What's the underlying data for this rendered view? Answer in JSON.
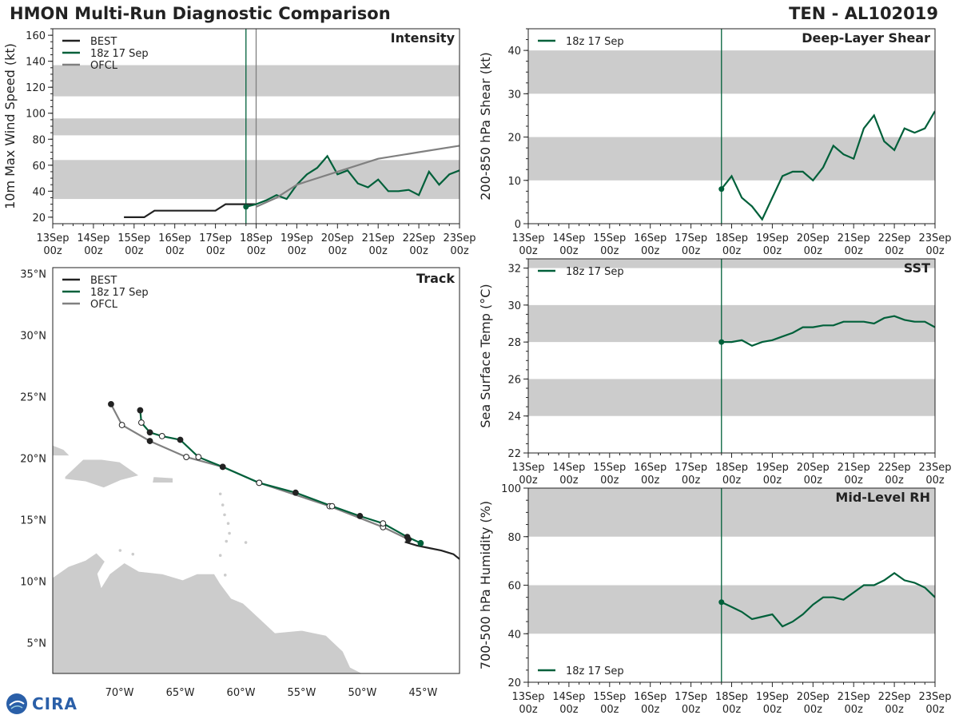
{
  "page": {
    "title": "HMON Multi-Run Diagnostic Comparison",
    "storm_id": "TEN - AL102019",
    "logo_text": "CIRA",
    "colors": {
      "best": "#222222",
      "run": "#00603a",
      "ofcl": "#808080",
      "band": "#cccccc",
      "land": "#cccccc"
    }
  },
  "legend": {
    "best": "BEST",
    "run": "18z 17 Sep",
    "ofcl": "OFCL"
  },
  "chart_data": [
    {
      "id": "intensity",
      "type": "line",
      "title": "Intensity",
      "ylabel": "10m Max Wind Speed (kt)",
      "xlabel": "",
      "xlim": [
        0,
        10
      ],
      "ylim": [
        15,
        165
      ],
      "yticks": [
        20,
        40,
        60,
        80,
        100,
        120,
        140,
        160
      ],
      "xtick_labels": [
        "13Sep\n00z",
        "14Sep\n00z",
        "15Sep\n00z",
        "16Sep\n00z",
        "17Sep\n00z",
        "18Sep\n00z",
        "19Sep\n00z",
        "20Sep\n00z",
        "21Sep\n00z",
        "22Sep\n00z",
        "23Sep\n00z"
      ],
      "bands": [
        [
          34,
          64
        ],
        [
          83,
          96
        ],
        [
          113,
          137
        ]
      ],
      "vlines": [
        {
          "x": 4.75,
          "color": "run"
        },
        {
          "x": 5.0,
          "color": "ofcl"
        }
      ],
      "series": [
        {
          "name": "BEST",
          "color": "best",
          "x": [
            1.75,
            2.0,
            2.25,
            2.5,
            2.75,
            3.0,
            3.25,
            3.5,
            3.75,
            4.0,
            4.25,
            4.5,
            4.75,
            5.0
          ],
          "y": [
            20,
            20,
            20,
            25,
            25,
            25,
            25,
            25,
            25,
            25,
            30,
            30,
            30,
            30
          ]
        },
        {
          "name": "18z 17 Sep",
          "color": "run",
          "x": [
            4.75,
            5.0,
            5.25,
            5.5,
            5.75,
            6.0,
            6.25,
            6.5,
            6.75,
            7.0,
            7.25,
            7.5,
            7.75,
            8.0,
            8.25,
            8.5,
            8.75,
            9.0,
            9.25,
            9.5,
            9.75,
            10.0
          ],
          "y": [
            28,
            30,
            33,
            37,
            34,
            45,
            53,
            58,
            67,
            53,
            56,
            46,
            43,
            49,
            40,
            40,
            41,
            37,
            55,
            45,
            53,
            56
          ],
          "start_marker": true
        },
        {
          "name": "OFCL",
          "color": "ofcl",
          "x": [
            5.0,
            5.5,
            6.0,
            7.0,
            8.0,
            9.0,
            10.0
          ],
          "y": [
            28,
            35,
            45,
            55,
            65,
            70,
            75
          ]
        }
      ]
    },
    {
      "id": "shear",
      "type": "line",
      "title": "Deep-Layer Shear",
      "ylabel": "200-850 hPa Shear (kt)",
      "xlabel": "",
      "xlim": [
        0,
        10
      ],
      "ylim": [
        0,
        45
      ],
      "yticks": [
        0,
        10,
        20,
        30,
        40
      ],
      "xtick_labels": [
        "13Sep\n00z",
        "14Sep\n00z",
        "15Sep\n00z",
        "16Sep\n00z",
        "17Sep\n00z",
        "18Sep\n00z",
        "19Sep\n00z",
        "20Sep\n00z",
        "21Sep\n00z",
        "22Sep\n00z",
        "23Sep\n00z"
      ],
      "bands": [
        [
          10,
          20
        ],
        [
          30,
          40
        ]
      ],
      "vlines": [
        {
          "x": 4.75,
          "color": "run"
        }
      ],
      "series": [
        {
          "name": "18z 17 Sep",
          "color": "run",
          "x": [
            4.75,
            5.0,
            5.25,
            5.5,
            5.75,
            6.0,
            6.25,
            6.5,
            6.75,
            7.0,
            7.25,
            7.5,
            7.75,
            8.0,
            8.25,
            8.5,
            8.75,
            9.0,
            9.25,
            9.5,
            9.75,
            10.0
          ],
          "y": [
            8,
            11,
            6,
            4,
            1,
            6,
            11,
            12,
            12,
            10,
            13,
            18,
            16,
            15,
            22,
            25,
            19,
            17,
            22,
            21,
            22,
            26
          ],
          "start_marker": true
        }
      ]
    },
    {
      "id": "track",
      "type": "scatter",
      "title": "Track",
      "xlim": [
        -75.5,
        -42
      ],
      "ylim": [
        2.5,
        35.5
      ],
      "xtick_values": [
        -70,
        -65,
        -60,
        -55,
        -50,
        -45
      ],
      "xtick_labels": [
        "70°W",
        "65°W",
        "60°W",
        "55°W",
        "50°W",
        "45°W"
      ],
      "ytick_values": [
        5,
        10,
        15,
        20,
        25,
        30,
        35
      ],
      "ytick_labels": [
        "5°N",
        "10°N",
        "15°N",
        "20°N",
        "25°N",
        "30°N",
        "35°N"
      ],
      "series": [
        {
          "name": "BEST",
          "color": "best",
          "lon": [
            -42.0,
            -42.5,
            -43.5,
            -44.5,
            -45.5,
            -46.5
          ],
          "lat": [
            11.8,
            12.2,
            12.5,
            12.7,
            12.9,
            13.2
          ]
        },
        {
          "name": "OFCL",
          "color": "ofcl",
          "lon": [
            -46.2,
            -48.3,
            -52.7,
            -58.5,
            -61.5,
            -64.5,
            -67.5,
            -69.8,
            -70.7
          ],
          "lat": [
            13.4,
            14.4,
            16.1,
            18.0,
            19.3,
            20.1,
            21.4,
            22.7,
            24.4
          ],
          "filled": [
            true,
            false,
            false,
            false,
            true,
            false,
            true,
            false,
            true
          ]
        },
        {
          "name": "18z 17 Sep",
          "color": "run",
          "lon": [
            -45.2,
            -46.3,
            -48.3,
            -50.2,
            -52.5,
            -55.5,
            -58.5,
            -61.5,
            -63.5,
            -65.0,
            -66.5,
            -67.5,
            -68.2,
            -68.3
          ],
          "lat": [
            13.1,
            13.6,
            14.7,
            15.3,
            16.1,
            17.2,
            18.0,
            19.3,
            20.1,
            21.5,
            21.8,
            22.1,
            22.9,
            23.9
          ],
          "filled": [
            true,
            true,
            false,
            true,
            false,
            true,
            false,
            true,
            false,
            true,
            false,
            true,
            false,
            true
          ]
        }
      ]
    },
    {
      "id": "sst",
      "type": "line",
      "title": "SST",
      "ylabel": "Sea Surface Temp (°C)",
      "xlabel": "",
      "xlim": [
        0,
        10
      ],
      "ylim": [
        22,
        32.5
      ],
      "yticks": [
        22,
        24,
        26,
        28,
        30,
        32
      ],
      "xtick_labels": [
        "13Sep\n00z",
        "14Sep\n00z",
        "15Sep\n00z",
        "16Sep\n00z",
        "17Sep\n00z",
        "18Sep\n00z",
        "19Sep\n00z",
        "20Sep\n00z",
        "21Sep\n00z",
        "22Sep\n00z",
        "23Sep\n00z"
      ],
      "bands": [
        [
          24,
          26
        ],
        [
          28,
          30
        ],
        [
          32,
          33
        ]
      ],
      "vlines": [
        {
          "x": 4.75,
          "color": "run"
        }
      ],
      "series": [
        {
          "name": "18z 17 Sep",
          "color": "run",
          "x": [
            4.75,
            5.0,
            5.25,
            5.5,
            5.75,
            6.0,
            6.25,
            6.5,
            6.75,
            7.0,
            7.25,
            7.5,
            7.75,
            8.0,
            8.25,
            8.5,
            8.75,
            9.0,
            9.25,
            9.5,
            9.75,
            10.0
          ],
          "y": [
            28.0,
            28.0,
            28.1,
            27.8,
            28.0,
            28.1,
            28.3,
            28.5,
            28.8,
            28.8,
            28.9,
            28.9,
            29.1,
            29.1,
            29.1,
            29.0,
            29.3,
            29.4,
            29.2,
            29.1,
            29.1,
            28.8
          ],
          "start_marker": true
        }
      ]
    },
    {
      "id": "rh",
      "type": "line",
      "title": "Mid-Level RH",
      "ylabel": "700-500 hPa Humidity (%)",
      "xlabel": "",
      "xlim": [
        0,
        10
      ],
      "ylim": [
        20,
        100
      ],
      "yticks": [
        20,
        40,
        60,
        80,
        100
      ],
      "xtick_labels": [
        "13Sep\n00z",
        "14Sep\n00z",
        "15Sep\n00z",
        "16Sep\n00z",
        "17Sep\n00z",
        "18Sep\n00z",
        "19Sep\n00z",
        "20Sep\n00z",
        "21Sep\n00z",
        "22Sep\n00z",
        "23Sep\n00z"
      ],
      "bands": [
        [
          40,
          60
        ],
        [
          80,
          100
        ]
      ],
      "vlines": [
        {
          "x": 4.75,
          "color": "run"
        }
      ],
      "legend_position": "bottom-left",
      "series": [
        {
          "name": "18z 17 Sep",
          "color": "run",
          "x": [
            4.75,
            5.0,
            5.25,
            5.5,
            5.75,
            6.0,
            6.25,
            6.5,
            6.75,
            7.0,
            7.25,
            7.5,
            7.75,
            8.0,
            8.25,
            8.5,
            8.75,
            9.0,
            9.25,
            9.5,
            9.75,
            10.0
          ],
          "y": [
            53,
            51,
            49,
            46,
            47,
            48,
            43,
            45,
            48,
            52,
            55,
            55,
            54,
            57,
            60,
            60,
            62,
            65,
            62,
            61,
            59,
            55
          ],
          "start_marker": true
        }
      ]
    }
  ]
}
